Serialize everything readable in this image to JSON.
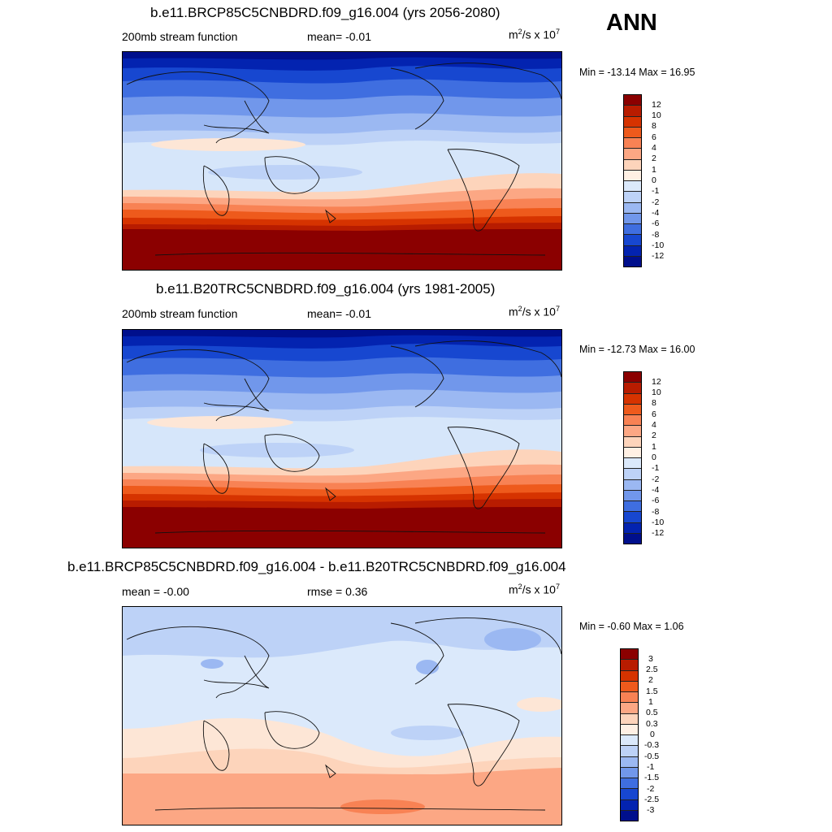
{
  "season": "ANN",
  "panels": [
    {
      "title": "b.e11.BRCP85C5CNBDRD.f09_g16.004 (yrs 2056-2080)",
      "left_label": "200mb stream function",
      "center_label": "mean=  -0.01",
      "units_base": "m",
      "units_rest": "/s x 10",
      "units_sup1": "2",
      "units_sup2": "7",
      "minmax": "Min = -13.14 Max =  16.95",
      "colorbar": {
        "labels": [
          "12",
          "10",
          "8",
          "6",
          "4",
          "2",
          "1",
          "0",
          "-1",
          "-2",
          "-4",
          "-6",
          "-8",
          "-10",
          "-12"
        ],
        "colors": [
          "#8b0000",
          "#b81c00",
          "#d63300",
          "#ee5a1c",
          "#f88254",
          "#fca784",
          "#fdd4bb",
          "#fff0e4",
          "#dbe9fb",
          "#bdd2f7",
          "#9bb8f2",
          "#7197eb",
          "#3f6ee0",
          "#1747d0",
          "#0323b0",
          "#000f8c"
        ]
      }
    },
    {
      "title": "b.e11.B20TRC5CNBDRD.f09_g16.004 (yrs 1981-2005)",
      "left_label": "200mb stream function",
      "center_label": "mean=  -0.01",
      "units_base": "m",
      "units_rest": "/s x 10",
      "units_sup1": "2",
      "units_sup2": "7",
      "minmax": "Min = -12.73 Max =  16.00",
      "colorbar": {
        "labels": [
          "12",
          "10",
          "8",
          "6",
          "4",
          "2",
          "1",
          "0",
          "-1",
          "-2",
          "-4",
          "-6",
          "-8",
          "-10",
          "-12"
        ],
        "colors": [
          "#8b0000",
          "#b81c00",
          "#d63300",
          "#ee5a1c",
          "#f88254",
          "#fca784",
          "#fdd4bb",
          "#fff0e4",
          "#dbe9fb",
          "#bdd2f7",
          "#9bb8f2",
          "#7197eb",
          "#3f6ee0",
          "#1747d0",
          "#0323b0",
          "#000f8c"
        ]
      }
    },
    {
      "title": "b.e11.BRCP85C5CNBDRD.f09_g16.004 - b.e11.B20TRC5CNBDRD.f09_g16.004",
      "left_label": "mean =  -0.00",
      "center_label": "rmse =   0.36",
      "units_base": "m",
      "units_rest": "/s x 10",
      "units_sup1": "2",
      "units_sup2": "7",
      "minmax": "Min =  -0.60 Max =   1.06",
      "colorbar": {
        "labels": [
          "3",
          "2.5",
          "2",
          "1.5",
          "1",
          "0.5",
          "0.3",
          "0",
          "-0.3",
          "-0.5",
          "-1",
          "-1.5",
          "-2",
          "-2.5",
          "-3"
        ],
        "colors": [
          "#8b0000",
          "#b81c00",
          "#d63300",
          "#ee5a1c",
          "#f88254",
          "#fca784",
          "#fdd4bb",
          "#fff0e4",
          "#dbe9fb",
          "#bdd2f7",
          "#9bb8f2",
          "#7197eb",
          "#3f6ee0",
          "#1747d0",
          "#0323b0",
          "#000f8c"
        ]
      }
    }
  ]
}
